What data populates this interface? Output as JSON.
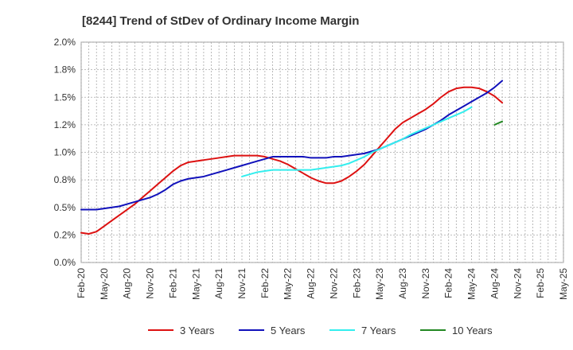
{
  "chart_data": {
    "type": "line",
    "title": "[8244]  Trend of StDev of Ordinary Income Margin",
    "xlabel": "",
    "ylabel": "",
    "x_tick_labels": [
      "Feb-20",
      "May-20",
      "Aug-20",
      "Nov-20",
      "Feb-21",
      "May-21",
      "Aug-21",
      "Nov-21",
      "Feb-22",
      "May-22",
      "Aug-22",
      "Nov-22",
      "Feb-23",
      "May-23",
      "Aug-23",
      "Nov-23",
      "Feb-24",
      "May-24",
      "Aug-24",
      "Nov-24",
      "Feb-25",
      "May-25"
    ],
    "y_tick_labels": [
      "0.0%",
      "0.2%",
      "0.5%",
      "0.8%",
      "1.0%",
      "1.2%",
      "1.5%",
      "1.8%",
      "2.0%"
    ],
    "y_tick_values": [
      0,
      0.25,
      0.5,
      0.75,
      1.0,
      1.25,
      1.5,
      1.75,
      2.0
    ],
    "ylim": [
      0,
      2.0
    ],
    "grid": true,
    "legend_position": "bottom",
    "series": [
      {
        "name": "3 Years",
        "color": "#dd1111",
        "start_index": 0,
        "values": [
          0.27,
          0.26,
          0.28,
          0.33,
          0.38,
          0.43,
          0.48,
          0.53,
          0.59,
          0.65,
          0.71,
          0.77,
          0.83,
          0.88,
          0.91,
          0.92,
          0.93,
          0.94,
          0.95,
          0.96,
          0.97,
          0.97,
          0.97,
          0.97,
          0.96,
          0.94,
          0.92,
          0.89,
          0.85,
          0.81,
          0.77,
          0.74,
          0.72,
          0.72,
          0.74,
          0.78,
          0.83,
          0.89,
          0.97,
          1.05,
          1.13,
          1.21,
          1.27,
          1.31,
          1.35,
          1.39,
          1.44,
          1.5,
          1.55,
          1.58,
          1.59,
          1.59,
          1.58,
          1.55,
          1.51,
          1.45
        ]
      },
      {
        "name": "5 Years",
        "color": "#1111bb",
        "start_index": 0,
        "values": [
          0.48,
          0.48,
          0.48,
          0.49,
          0.5,
          0.51,
          0.53,
          0.55,
          0.57,
          0.59,
          0.62,
          0.66,
          0.71,
          0.74,
          0.76,
          0.77,
          0.78,
          0.8,
          0.82,
          0.84,
          0.86,
          0.88,
          0.9,
          0.92,
          0.94,
          0.96,
          0.96,
          0.96,
          0.96,
          0.96,
          0.95,
          0.95,
          0.95,
          0.96,
          0.96,
          0.97,
          0.98,
          0.99,
          1.01,
          1.03,
          1.06,
          1.09,
          1.12,
          1.15,
          1.18,
          1.21,
          1.25,
          1.29,
          1.34,
          1.38,
          1.42,
          1.46,
          1.5,
          1.54,
          1.59,
          1.65
        ]
      },
      {
        "name": "7 Years",
        "color": "#33eeee",
        "start_index": 21,
        "values": [
          0.78,
          0.8,
          0.82,
          0.83,
          0.84,
          0.84,
          0.84,
          0.84,
          0.84,
          0.84,
          0.85,
          0.86,
          0.87,
          0.88,
          0.9,
          0.93,
          0.96,
          1.0,
          1.03,
          1.06,
          1.09,
          1.12,
          1.16,
          1.19,
          1.22,
          1.25,
          1.28,
          1.31,
          1.34,
          1.37,
          1.41
        ]
      },
      {
        "name": "10 Years",
        "color": "#228822",
        "start_index": 54,
        "values": [
          1.25,
          1.28
        ]
      }
    ]
  }
}
